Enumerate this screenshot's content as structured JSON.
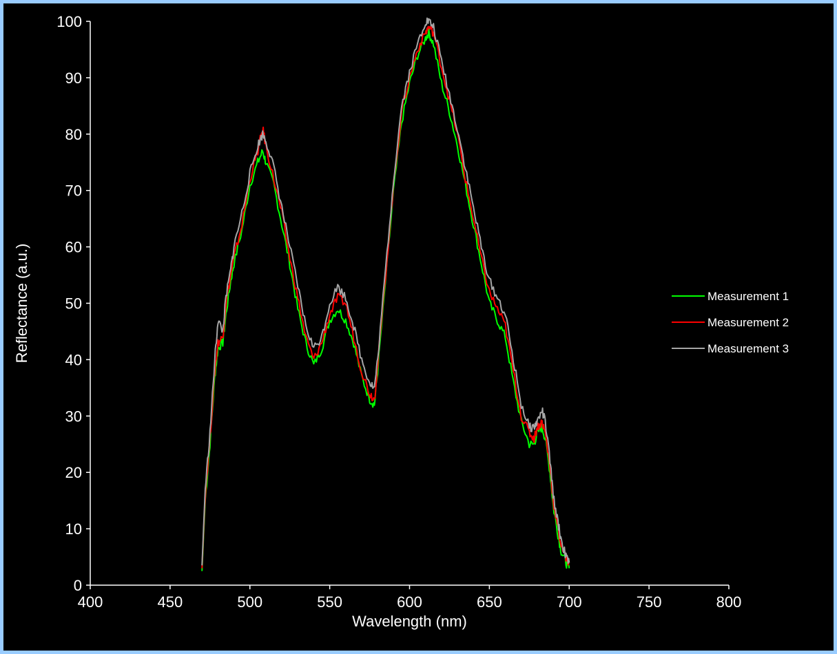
{
  "chart_data": {
    "type": "line",
    "title": "",
    "xlabel": "Wavelength (nm)",
    "ylabel": "Reflectance (a.u.)",
    "xlim": [
      400,
      800
    ],
    "ylim": [
      0,
      100
    ],
    "x_ticks": [
      "400",
      "450",
      "500",
      "550",
      "600",
      "650",
      "700",
      "750",
      "800"
    ],
    "y_ticks": [
      "0",
      "10",
      "20",
      "30",
      "40",
      "50",
      "60",
      "70",
      "80",
      "90",
      "100"
    ],
    "grid": false,
    "legend_position": "right",
    "background": "#000000",
    "x": [
      470,
      472,
      475,
      478,
      480,
      483,
      485,
      488,
      490,
      495,
      500,
      505,
      508,
      510,
      515,
      520,
      525,
      530,
      535,
      540,
      545,
      550,
      555,
      560,
      565,
      570,
      575,
      578,
      580,
      585,
      590,
      595,
      600,
      605,
      610,
      612,
      615,
      620,
      625,
      630,
      635,
      640,
      645,
      650,
      655,
      660,
      665,
      670,
      675,
      678,
      680,
      683,
      685,
      688,
      690,
      693,
      695,
      698,
      700
    ],
    "series": [
      {
        "name": "Measurement 1",
        "color": "#00ff00",
        "values": [
          2.5,
          15,
          25,
          37,
          42,
          43,
          48,
          54,
          57,
          63,
          71,
          75,
          77,
          75,
          71,
          64,
          57,
          49,
          43,
          39,
          42,
          47,
          49,
          47,
          43,
          37,
          33,
          32,
          38,
          54,
          70,
          82,
          89,
          94,
          97,
          98,
          96,
          89,
          84,
          78,
          71,
          64,
          57,
          50,
          47,
          44,
          36,
          29,
          25,
          25,
          27,
          28,
          26,
          20,
          14,
          9,
          6,
          4,
          3
        ]
      },
      {
        "name": "Measurement 2",
        "color": "#ff0000",
        "values": [
          3,
          16,
          26,
          38,
          43,
          44,
          50,
          55,
          58,
          64,
          72,
          77,
          81,
          78,
          72,
          66,
          58,
          51,
          44,
          40,
          43,
          48,
          51,
          50,
          44,
          38,
          34,
          33,
          39,
          55,
          71,
          84,
          90,
          95,
          98,
          99,
          98,
          92,
          86,
          80,
          72,
          65,
          58,
          52,
          49,
          46,
          38,
          30,
          27,
          26,
          28,
          29,
          27,
          21,
          15,
          10,
          7,
          5,
          4
        ]
      },
      {
        "name": "Measurement 3",
        "color": "#a6a6a6",
        "values": [
          3.5,
          17,
          27,
          40,
          47,
          45,
          51,
          56,
          60,
          66,
          73,
          78,
          80,
          79,
          74,
          67,
          60,
          53,
          46,
          42,
          44,
          50,
          53,
          51,
          46,
          40,
          36,
          35,
          40,
          56,
          72,
          85,
          91,
          96,
          100,
          100,
          99,
          93,
          87,
          81,
          74,
          67,
          60,
          54,
          51,
          48,
          40,
          32,
          28,
          28,
          29,
          31,
          29,
          22,
          16,
          11,
          8,
          5,
          4
        ]
      }
    ]
  }
}
